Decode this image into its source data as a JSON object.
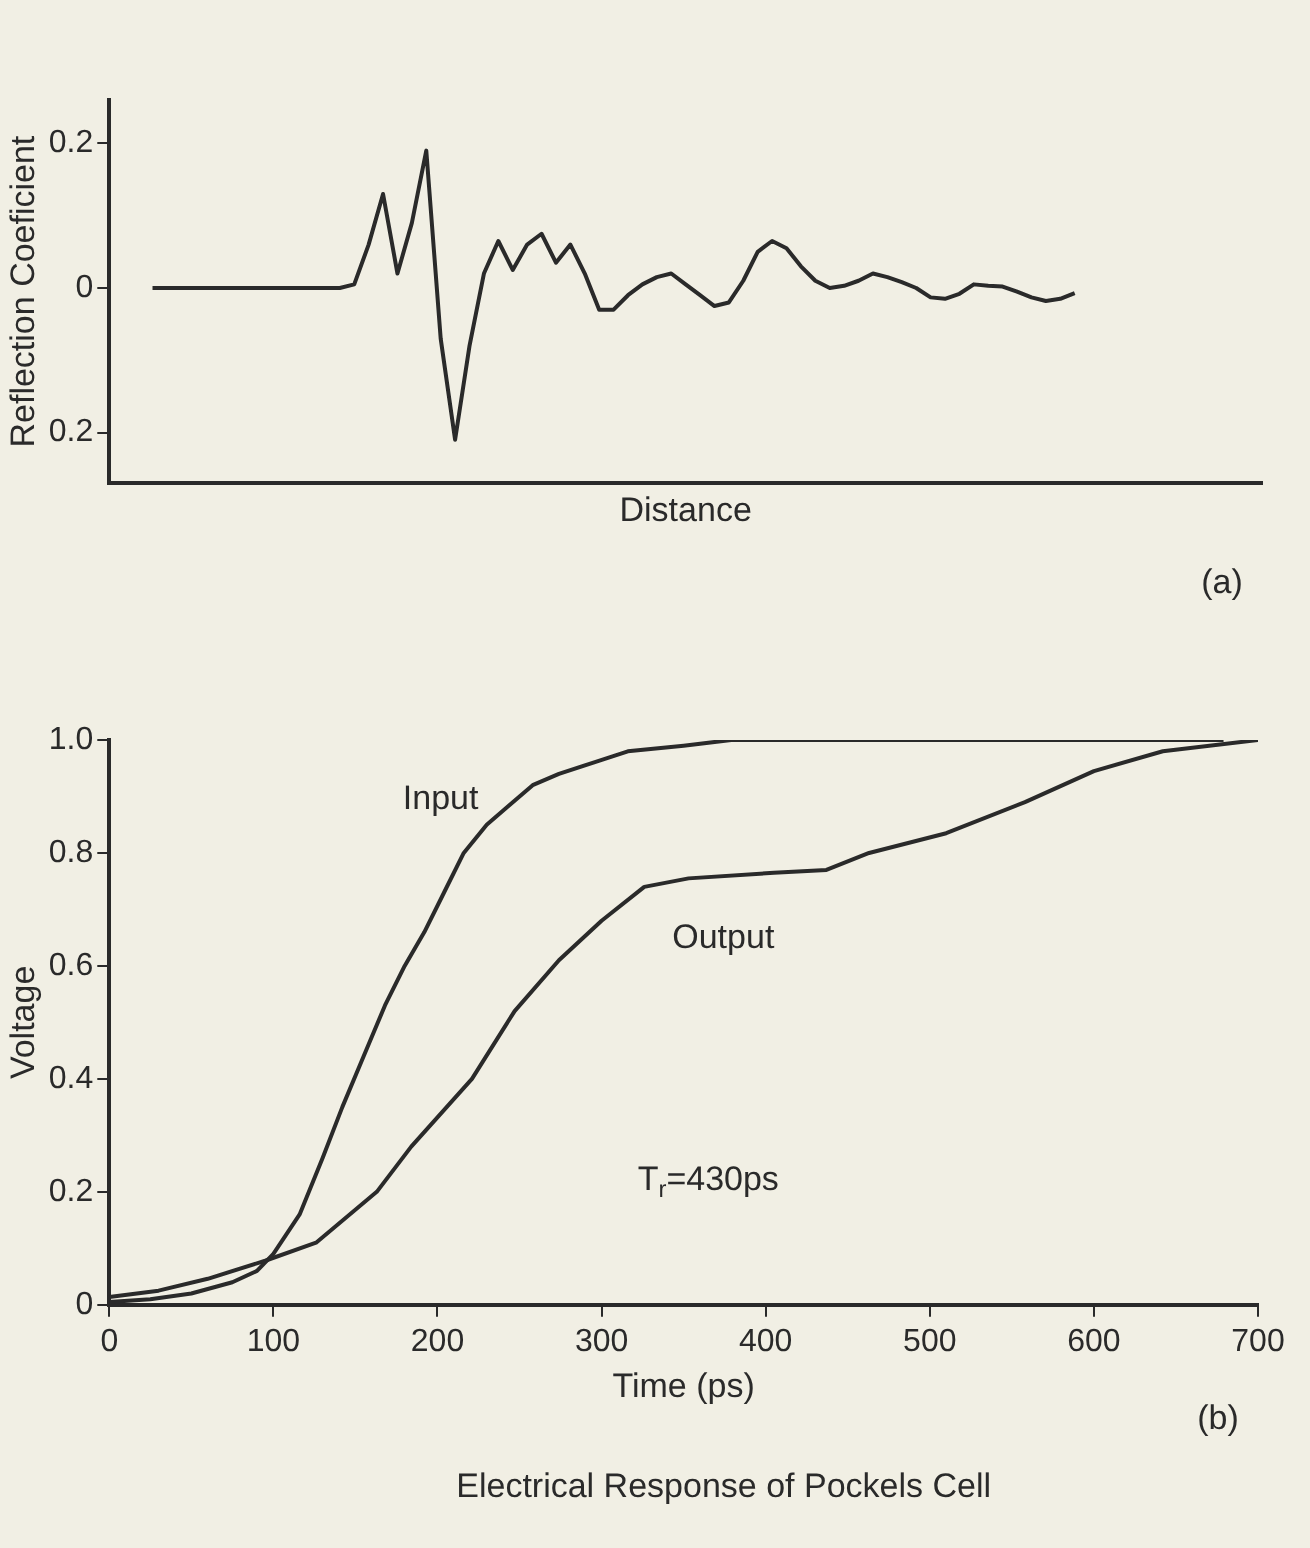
{
  "chart_data": [
    {
      "type": "line",
      "xlabel": "Distance",
      "ylabel": "Reflection Coeficient",
      "annotations": [
        "(a)"
      ],
      "categories": [
        null,
        null,
        null,
        null,
        null,
        null,
        null,
        null,
        null,
        null,
        null,
        null,
        null,
        null,
        null,
        null,
        null,
        null,
        null,
        null,
        null,
        null,
        null,
        null,
        null,
        null,
        null,
        null,
        null,
        null,
        null,
        null,
        null,
        null,
        null,
        null,
        null,
        null,
        null,
        null,
        null,
        null,
        null,
        null,
        null,
        null,
        null,
        null,
        null,
        null,
        null,
        null,
        null,
        null,
        null,
        null,
        null,
        null,
        null,
        null,
        null,
        null,
        null,
        null,
        null,
        null,
        null,
        null,
        null,
        null,
        null,
        null,
        null,
        null,
        null,
        null,
        null,
        null,
        null,
        null,
        null
      ],
      "series": [
        {
          "color": "#2a2a2a",
          "values": [
            null,
            null,
            null,
            0,
            0,
            0,
            0,
            0,
            0,
            0,
            0,
            0,
            0,
            0,
            0,
            0,
            0,
            0.005,
            0.06,
            0.13,
            0.02,
            0.09,
            0.19,
            -0.07,
            -0.21,
            -0.08,
            0.02,
            0.065,
            0.025,
            0.06,
            0.075,
            0.035,
            0.06,
            0.02,
            -0.03,
            -0.03,
            -0.01,
            0.005,
            0.015,
            0.02,
            0.005,
            -0.01,
            -0.025,
            -0.02,
            0.01,
            0.05,
            0.065,
            0.055,
            0.03,
            0.01,
            0,
            0.003,
            0.01,
            0.02,
            0.015,
            0.008,
            0,
            -0.013,
            -0.015,
            -0.008,
            0.005,
            0.003,
            0.002,
            -0.005,
            -0.013,
            -0.018,
            -0.015,
            -0.007,
            null,
            null,
            null,
            null,
            null,
            null,
            null,
            null,
            null,
            null,
            null,
            null,
            null
          ]
        }
      ],
      "ylim": [
        -0.27,
        0.26
      ],
      "yticks": [
        {
          "value": -0.2,
          "label": "0.2"
        },
        0,
        0.2
      ],
      "tick_labels": "y",
      "grid": false,
      "legend": false,
      "marker": "none",
      "line_style": "solid"
    },
    {
      "type": "line",
      "xlabel": "Time (ps)",
      "ylabel": "Voltage",
      "annotations": [
        "T$_{r}$=430ps",
        "(b)",
        "Electrical Response of Pockels Cell"
      ],
      "series": [
        {
          "name": "Input",
          "color": "#2a2a2a",
          "x": [
            0,
            25,
            50,
            75,
            90,
            100,
            116,
            130,
            142,
            155,
            168,
            180,
            192,
            204,
            216,
            230,
            242,
            258,
            274,
            295,
            316,
            350,
            379,
            450,
            550,
            679
          ],
          "values": [
            0.005,
            0.01,
            0.02,
            0.04,
            0.06,
            0.09,
            0.16,
            0.26,
            0.35,
            0.44,
            0.53,
            0.6,
            0.66,
            0.73,
            0.8,
            0.85,
            0.88,
            0.92,
            0.94,
            0.96,
            0.98,
            0.99,
            1.0,
            1.0,
            1.0,
            1.0
          ]
        },
        {
          "name": "Output",
          "color": "#2a2a2a",
          "x": [
            0,
            30,
            60,
            95,
            126,
            163,
            184,
            221,
            247,
            274,
            300,
            326,
            353,
            405,
            437,
            463,
            510,
            558,
            600,
            642,
            700
          ],
          "values": [
            0.014,
            0.025,
            0.046,
            0.078,
            0.11,
            0.2,
            0.28,
            0.4,
            0.52,
            0.61,
            0.68,
            0.74,
            0.755,
            0.765,
            0.77,
            0.8,
            0.835,
            0.89,
            0.945,
            0.98,
            1.0
          ]
        }
      ],
      "xlim": [
        0,
        700
      ],
      "xticks": [
        0,
        100,
        200,
        300,
        400,
        500,
        600,
        700
      ],
      "ylim": [
        0,
        1.0
      ],
      "yticks": [
        0,
        0.2,
        0.4,
        0.6,
        0.8,
        {
          "value": 1.0,
          "label": "1.0"
        }
      ],
      "grid": false,
      "legend": false,
      "marker": "none",
      "line_style": "solid"
    }
  ]
}
